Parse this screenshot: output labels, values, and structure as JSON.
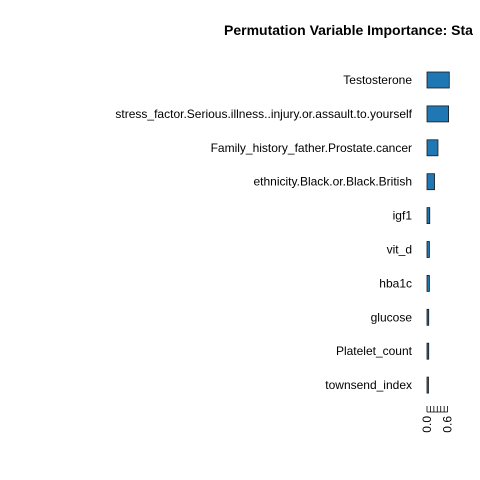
{
  "chart_data": {
    "type": "bar",
    "orientation": "horizontal",
    "title": "Permutation Variable Importance: Sta",
    "xlabel": "",
    "ylabel": "",
    "categories": [
      "Testosterone",
      "stress_factor.Serious.illness..injury.or.assault.to.yourself",
      "Family_history_father.Prostate.cancer",
      "ethnicity.Black.or.Black.British",
      "igf1",
      "vit_d",
      "hba1c",
      "glucose",
      "Platelet_count",
      "townsend_index"
    ],
    "values": [
      0.65,
      0.63,
      0.32,
      0.22,
      0.08,
      0.07,
      0.07,
      0.05,
      0.05,
      0.04
    ],
    "xlim": [
      0,
      0.7
    ],
    "x_ticks": [
      0.0,
      0.1,
      0.2,
      0.3,
      0.4,
      0.5,
      0.6
    ],
    "x_tick_labels": [
      "0.0",
      "",
      "",
      "",
      "",
      "",
      "0.6"
    ],
    "bar_color": "#1f77b4",
    "grid": false,
    "legend": "none"
  }
}
